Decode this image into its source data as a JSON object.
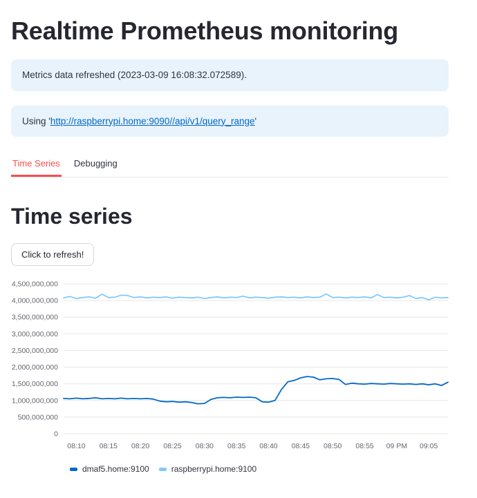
{
  "page": {
    "title": "Realtime Prometheus monitoring",
    "refresh_notice": "Metrics data refreshed (2023-03-09 16:08:32.072589).",
    "using_prefix": "Using '",
    "using_link": "http://raspberrypi.home:9090//api/v1/query_range",
    "using_suffix": "'"
  },
  "tabs": [
    {
      "label": "Time Series",
      "active": true
    },
    {
      "label": "Debugging",
      "active": false
    }
  ],
  "section": {
    "heading": "Time series",
    "refresh_button": "Click to refresh!"
  },
  "colors": {
    "accent": "#ff4b4b",
    "info_background": "#e8f3fc",
    "link": "#0068c9",
    "gridline": "#e6e6e6",
    "tick_text": "#63666d",
    "series1": "#0068c9",
    "series2": "#83c9ff"
  },
  "chart_data": {
    "type": "line",
    "title": "",
    "xlabel": "",
    "ylabel": "",
    "grid": true,
    "legend_position": "bottom",
    "x_range": [
      0,
      60
    ],
    "x_ticks": [
      {
        "m": 2,
        "label": "08:10"
      },
      {
        "m": 7,
        "label": "08:15"
      },
      {
        "m": 12,
        "label": "08:20"
      },
      {
        "m": 17,
        "label": "08:25"
      },
      {
        "m": 22,
        "label": "08:30"
      },
      {
        "m": 27,
        "label": "08:35"
      },
      {
        "m": 32,
        "label": "08:40"
      },
      {
        "m": 37,
        "label": "08:45"
      },
      {
        "m": 42,
        "label": "08:50"
      },
      {
        "m": 47,
        "label": "08:55"
      },
      {
        "m": 52,
        "label": "09 PM"
      },
      {
        "m": 57,
        "label": "09:05"
      }
    ],
    "ylim": [
      0,
      4500000000
    ],
    "y_ticks": [
      0,
      500000000,
      1000000000,
      1500000000,
      2000000000,
      2500000000,
      3000000000,
      3500000000,
      4000000000,
      4500000000
    ],
    "series": [
      {
        "name": "dmaf5.home:9100",
        "color": "#0068c9",
        "values": [
          1060000000,
          1050000000,
          1070000000,
          1050000000,
          1060000000,
          1080000000,
          1050000000,
          1060000000,
          1050000000,
          1070000000,
          1050000000,
          1060000000,
          1050000000,
          1060000000,
          1040000000,
          980000000,
          960000000,
          970000000,
          950000000,
          960000000,
          940000000,
          900000000,
          910000000,
          1030000000,
          1080000000,
          1090000000,
          1080000000,
          1100000000,
          1090000000,
          1100000000,
          1080000000,
          960000000,
          950000000,
          1000000000,
          1330000000,
          1560000000,
          1600000000,
          1680000000,
          1720000000,
          1700000000,
          1620000000,
          1650000000,
          1660000000,
          1630000000,
          1480000000,
          1520000000,
          1500000000,
          1490000000,
          1510000000,
          1500000000,
          1490000000,
          1510000000,
          1500000000,
          1490000000,
          1500000000,
          1480000000,
          1500000000,
          1470000000,
          1500000000,
          1450000000,
          1550000000
        ]
      },
      {
        "name": "raspberrypi.home:9100",
        "color": "#83c9ff",
        "values": [
          4080000000,
          4120000000,
          4060000000,
          4090000000,
          4110000000,
          4070000000,
          4190000000,
          4090000000,
          4100000000,
          4160000000,
          4150000000,
          4090000000,
          4110000000,
          4080000000,
          4100000000,
          4090000000,
          4110000000,
          4070000000,
          4100000000,
          4090000000,
          4080000000,
          4100000000,
          4060000000,
          4090000000,
          4110000000,
          4080000000,
          4100000000,
          4090000000,
          4130000000,
          4080000000,
          4100000000,
          4090000000,
          4070000000,
          4100000000,
          4110000000,
          4090000000,
          4100000000,
          4080000000,
          4110000000,
          4090000000,
          4100000000,
          4200000000,
          4090000000,
          4100000000,
          4080000000,
          4100000000,
          4090000000,
          4110000000,
          4080000000,
          4180000000,
          4090000000,
          4100000000,
          4080000000,
          4100000000,
          4150000000,
          4060000000,
          4090000000,
          4020000000,
          4100000000,
          4080000000,
          4090000000
        ]
      }
    ]
  }
}
